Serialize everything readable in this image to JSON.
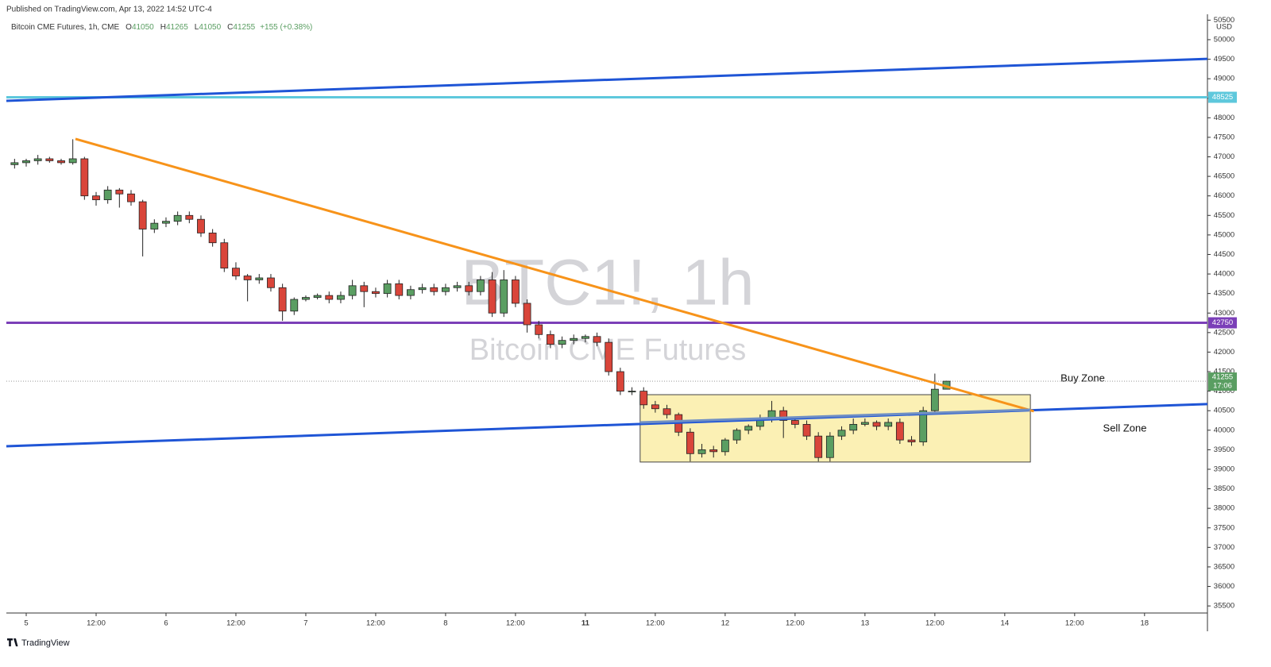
{
  "header": "Published on TradingView.com, Apr 13, 2022 14:52 UTC-4",
  "footer": "TradingView",
  "chart_data": {
    "type": "candlestick",
    "title": "Bitcoin CME Futures, 1h, CME",
    "watermark": [
      "BTC1!, 1h",
      "Bitcoin CME Futures"
    ],
    "ohlc_prefixes": [
      "O",
      "H",
      "L",
      "C"
    ],
    "change": "+155 (+0.38%)",
    "countdown": "17:06",
    "axis_unit": "USD",
    "up_color": "#5a9e62",
    "down_color": "#d9453a",
    "x": [
      -2,
      0,
      2,
      4,
      6,
      8,
      10,
      12,
      14,
      16,
      18,
      20,
      22,
      24,
      26,
      28,
      30,
      32,
      34,
      36,
      38,
      40,
      42,
      44,
      46,
      48,
      50,
      52,
      54,
      56,
      58,
      60,
      62,
      64,
      66,
      68,
      70,
      72,
      74,
      76,
      78,
      80,
      82,
      84,
      86,
      88,
      90,
      92,
      94,
      96,
      98,
      100,
      102,
      104,
      106,
      108,
      110,
      112,
      114,
      116,
      118,
      120,
      122,
      124,
      126,
      128,
      130,
      132,
      134,
      136,
      138,
      140,
      142,
      144,
      146,
      148,
      150,
      152,
      154,
      156,
      158
    ],
    "open": [
      46800,
      46850,
      46900,
      46950,
      46900,
      46850,
      46950,
      46000,
      45900,
      46150,
      46050,
      45850,
      45150,
      45300,
      45350,
      45500,
      45400,
      45050,
      44800,
      44150,
      43950,
      43850,
      43900,
      43650,
      43050,
      43350,
      43400,
      43450,
      43350,
      43450,
      43700,
      43550,
      43500,
      43750,
      43450,
      43600,
      43650,
      43550,
      43650,
      43700,
      43550,
      43850,
      43000,
      43850,
      43250,
      42700,
      42450,
      42200,
      42300,
      42350,
      42400,
      42250,
      41500,
      41000,
      41000,
      40650,
      40550,
      40400,
      39950,
      39400,
      39500,
      39450,
      39750,
      40000,
      40100,
      40300,
      40500,
      40250,
      40150,
      39850,
      39300,
      39850,
      40000,
      40150,
      40200,
      40100,
      40200,
      39750,
      39700,
      40500,
      41050
    ],
    "high": [
      46950,
      46950,
      47050,
      47000,
      46950,
      47450,
      47000,
      46100,
      46250,
      46200,
      46150,
      45900,
      45400,
      45450,
      45600,
      45600,
      45500,
      45150,
      44900,
      44300,
      44000,
      44000,
      44000,
      43750,
      43400,
      43450,
      43500,
      43550,
      43550,
      43850,
      43800,
      43650,
      43850,
      43850,
      43700,
      43750,
      43750,
      43750,
      43800,
      43800,
      43950,
      44050,
      44100,
      43950,
      43350,
      42800,
      42550,
      42400,
      42450,
      42450,
      42500,
      42350,
      41600,
      41100,
      41100,
      40750,
      40650,
      40450,
      40050,
      39650,
      39600,
      39800,
      40050,
      40150,
      40400,
      40750,
      40600,
      40350,
      40250,
      39950,
      39950,
      40100,
      40300,
      40300,
      40250,
      40300,
      40300,
      39850,
      40600,
      41450,
      41265
    ],
    "low": [
      46700,
      46750,
      46800,
      46850,
      46800,
      46800,
      45900,
      45750,
      45800,
      45700,
      45750,
      44450,
      45050,
      45200,
      45250,
      45300,
      44950,
      44700,
      44050,
      43850,
      43300,
      43750,
      43550,
      42800,
      42950,
      43300,
      43350,
      43250,
      43250,
      43350,
      43150,
      43400,
      43400,
      43350,
      43350,
      43500,
      43450,
      43450,
      43550,
      43450,
      43450,
      42900,
      42900,
      43150,
      42500,
      42350,
      42100,
      42100,
      42200,
      42250,
      42150,
      41400,
      40900,
      40900,
      40550,
      40450,
      40300,
      39850,
      39200,
      39300,
      39300,
      39350,
      39650,
      39900,
      40000,
      40200,
      39800,
      40050,
      39750,
      39200,
      39200,
      39750,
      39900,
      40100,
      40000,
      40000,
      39650,
      39600,
      39600,
      40450,
      41050
    ],
    "close": [
      46850,
      46900,
      46950,
      46900,
      46850,
      46950,
      46000,
      45900,
      46150,
      46050,
      45850,
      45150,
      45300,
      45350,
      45500,
      45400,
      45050,
      44800,
      44150,
      43950,
      43850,
      43900,
      43650,
      43050,
      43350,
      43400,
      43450,
      43350,
      43450,
      43700,
      43550,
      43500,
      43750,
      43450,
      43600,
      43650,
      43550,
      43650,
      43700,
      43550,
      43850,
      43000,
      43850,
      43250,
      42700,
      42450,
      42200,
      42300,
      42350,
      42400,
      42250,
      41500,
      41000,
      41000,
      40650,
      40550,
      40400,
      39950,
      39400,
      39500,
      39450,
      39750,
      40000,
      40100,
      40300,
      40500,
      40250,
      40150,
      39850,
      39300,
      39850,
      40000,
      40150,
      40200,
      40100,
      40200,
      39750,
      39700,
      40500,
      41050,
      41255
    ],
    "xlim": [
      -3.41,
      202.8
    ],
    "ylim": [
      35360,
      50650
    ],
    "xticks": [
      {
        "value": 0,
        "label": "5"
      },
      {
        "value": 12,
        "label": "12:00"
      },
      {
        "value": 24,
        "label": "6"
      },
      {
        "value": 36,
        "label": "12:00"
      },
      {
        "value": 48,
        "label": "7"
      },
      {
        "value": 60,
        "label": "12:00"
      },
      {
        "value": 72,
        "label": "8"
      },
      {
        "value": 84,
        "label": "12:00"
      },
      {
        "value": 96,
        "label": "11"
      },
      {
        "value": 108,
        "label": "12:00"
      },
      {
        "value": 120,
        "label": "12"
      },
      {
        "value": 132,
        "label": "12:00"
      },
      {
        "value": 144,
        "label": "13"
      },
      {
        "value": 156,
        "label": "12:00"
      },
      {
        "value": 168,
        "label": "14"
      },
      {
        "value": 180,
        "label": "12:00"
      },
      {
        "value": 192,
        "label": "18"
      }
    ],
    "yticks": [
      35500,
      36000,
      36500,
      37000,
      37500,
      38000,
      38500,
      39000,
      39500,
      40000,
      40500,
      41000,
      41500,
      42000,
      42500,
      43000,
      43500,
      44000,
      44500,
      45000,
      45500,
      46000,
      46500,
      47000,
      47500,
      48000,
      48500,
      49000,
      49500,
      50000,
      50500
    ],
    "levels": [
      {
        "value": 48525,
        "color": "#5ec8dc"
      },
      {
        "value": 42750,
        "color": "#7b3fb8"
      }
    ],
    "trend_lines": [
      {
        "color": "#1f55d6",
        "x": [
          -3.41,
          202.8
        ],
        "y": [
          48435,
          49510
        ]
      },
      {
        "color": "#1f55d6",
        "x": [
          -3.41,
          202.8
        ],
        "y": [
          39590,
          40670
        ]
      },
      {
        "color": "#f7931a",
        "x": [
          8.45,
          173
        ],
        "y": [
          47460,
          40485
        ]
      },
      {
        "color": "#6f8fc4",
        "x": [
          105.4,
          172.4
        ],
        "y": [
          40200,
          40525
        ]
      }
    ],
    "zone": {
      "color": "#fbf0b4",
      "x": [
        105.4,
        172.4
      ],
      "y": [
        39185,
        40910
      ]
    },
    "annotations": [
      "Buy Zone",
      "Sell Zone"
    ]
  }
}
